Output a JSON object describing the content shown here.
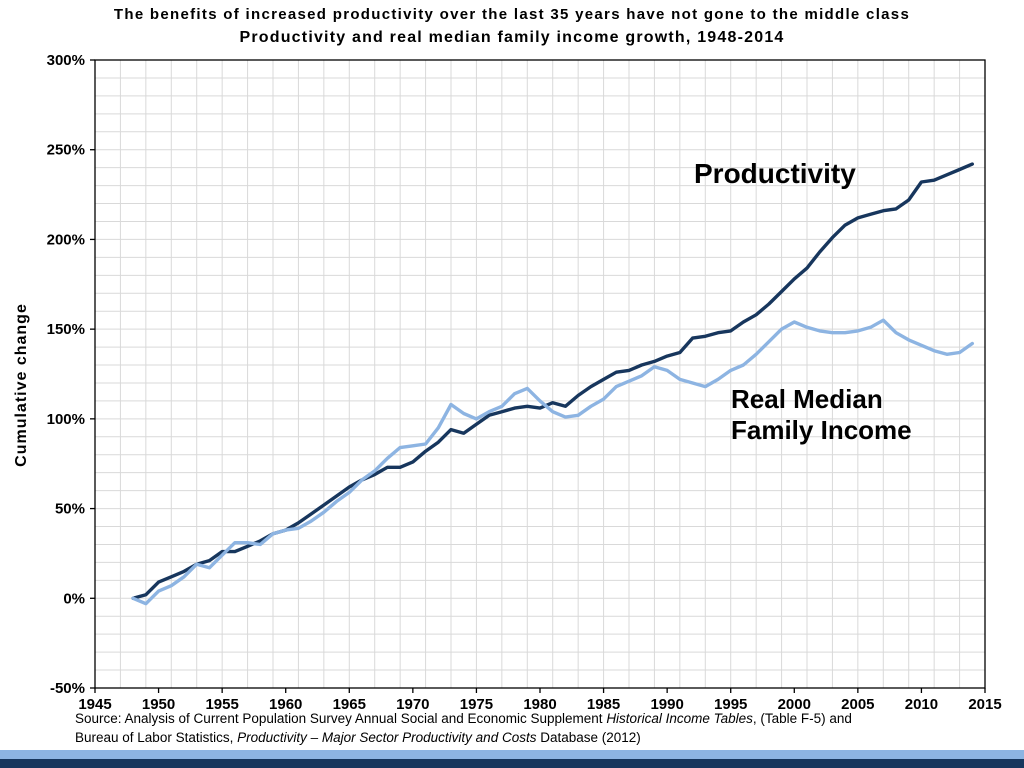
{
  "title": {
    "line1": "The benefits of increased productivity over the last 35 years have not gone to the middle class",
    "line2": "Productivity and real median family income growth, 1948-2014"
  },
  "y_axis_title": "Cumulative change",
  "annotations": {
    "productivity": "Productivity",
    "income_line1": "Real Median",
    "income_line2": "Family Income"
  },
  "source": {
    "line1_pre": "Source:  Analysis of Current Population Survey Annual Social and Economic Supplement ",
    "line1_italic": "Historical Income Tables",
    "line1_post": ", (Table F-5) and",
    "line2_pre": "Bureau of Labor Statistics, ",
    "line2_italic": "Productivity – Major Sector Productivity and Costs",
    "line2_post": " Database (2012)"
  },
  "colors": {
    "productivity_line": "#17365D",
    "income_line": "#8DB4E2",
    "grid": "#D9D9D9",
    "axis": "#000000",
    "stripe_light": "#8DB4E2",
    "stripe_dark": "#17365D"
  },
  "chart_data": {
    "type": "line",
    "title": "The benefits of increased productivity over the last 35 years have not gone to the middle class",
    "subtitle": "Productivity and real median family income growth, 1948-2014",
    "xlabel": "",
    "ylabel": "Cumulative change",
    "xlim": [
      1945,
      2015
    ],
    "ylim": [
      -50,
      300
    ],
    "grid": {
      "on": true,
      "x_step": 2,
      "y_step": 10
    },
    "legend_position": "in-plot text annotations",
    "x_tick_values": [
      1945,
      1950,
      1955,
      1960,
      1965,
      1970,
      1975,
      1980,
      1985,
      1990,
      1995,
      2000,
      2005,
      2010,
      2015
    ],
    "y_tick_values": [
      300,
      250,
      200,
      150,
      100,
      50,
      0,
      -50
    ],
    "y_tick_labels": [
      "300%",
      "250%",
      "200%",
      "150%",
      "100%",
      "50%",
      "0%",
      "-50%"
    ],
    "x": [
      1948,
      1949,
      1950,
      1951,
      1952,
      1953,
      1954,
      1955,
      1956,
      1957,
      1958,
      1959,
      1960,
      1961,
      1962,
      1963,
      1964,
      1965,
      1966,
      1967,
      1968,
      1969,
      1970,
      1971,
      1972,
      1973,
      1974,
      1975,
      1976,
      1977,
      1978,
      1979,
      1980,
      1981,
      1982,
      1983,
      1984,
      1985,
      1986,
      1987,
      1988,
      1989,
      1990,
      1991,
      1992,
      1993,
      1994,
      1995,
      1996,
      1997,
      1998,
      1999,
      2000,
      2001,
      2002,
      2003,
      2004,
      2005,
      2006,
      2007,
      2008,
      2009,
      2010,
      2011,
      2012,
      2013,
      2014
    ],
    "series": [
      {
        "name": "Productivity",
        "color": "#17365D",
        "values": [
          0,
          2,
          9,
          12,
          15,
          19,
          21,
          26,
          26,
          29,
          32,
          36,
          38,
          42,
          47,
          52,
          57,
          62,
          66,
          69,
          73,
          73,
          76,
          82,
          87,
          94,
          92,
          97,
          102,
          104,
          106,
          107,
          106,
          109,
          107,
          113,
          118,
          122,
          126,
          127,
          130,
          132,
          135,
          137,
          145,
          146,
          148,
          149,
          154,
          158,
          164,
          171,
          178,
          184,
          193,
          201,
          208,
          212,
          214,
          216,
          217,
          222,
          232,
          233,
          236,
          239,
          242
        ]
      },
      {
        "name": "Real Median Family Income",
        "color": "#8DB4E2",
        "values": [
          0,
          -3,
          4,
          7,
          12,
          19,
          17,
          24,
          31,
          31,
          30,
          36,
          38,
          39,
          43,
          48,
          54,
          59,
          66,
          71,
          78,
          84,
          85,
          86,
          95,
          108,
          103,
          100,
          104,
          107,
          114,
          117,
          110,
          104,
          101,
          102,
          107,
          111,
          118,
          121,
          124,
          129,
          127,
          122,
          120,
          118,
          122,
          127,
          130,
          136,
          143,
          150,
          154,
          151,
          149,
          148,
          148,
          149,
          151,
          155,
          148,
          144,
          141,
          138,
          136,
          137,
          142
        ]
      }
    ]
  }
}
